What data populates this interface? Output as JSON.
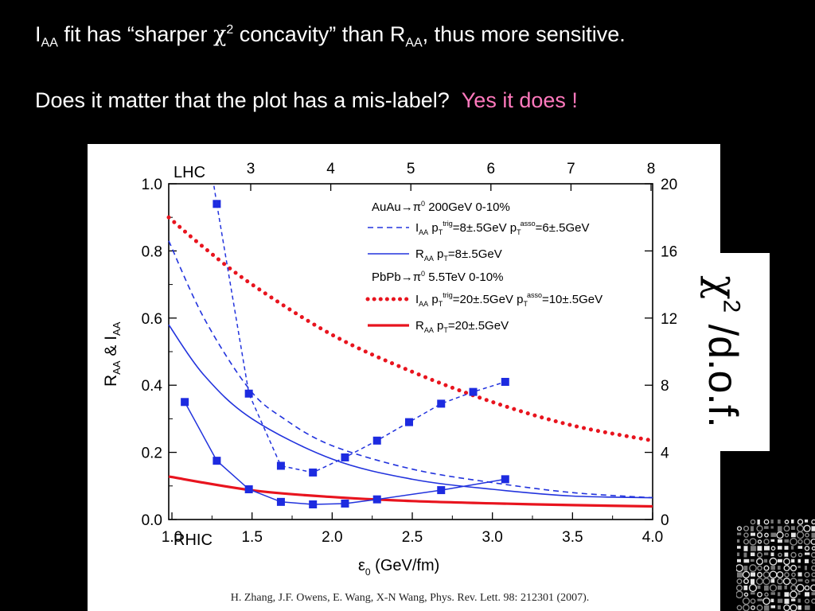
{
  "slide": {
    "line1": {
      "i": "I",
      "i_sub": "AA",
      "text_a": " fit has “sharper ",
      "chi": "χ",
      "chi_sup": "2",
      "text_b": " concavity” than R",
      "r_sub": "AA",
      "text_c": ", thus more sensitive."
    },
    "line2": {
      "question": "Does it matter that the plot has a mis-label?",
      "answer": "Yes it does !"
    },
    "right_label": {
      "chi": "χ",
      "sup": "2",
      "rest": " /d.o.f."
    },
    "colors": {
      "background": "#000000",
      "text": "#ffffff",
      "accent": "#ff79bd"
    }
  },
  "chart_data": {
    "type": "line",
    "bottom_axis": {
      "name": "RHIC",
      "label_main": "ε",
      "label_sub": "0",
      "label_rest": " (GeV/fm)",
      "ticks": [
        "1.0",
        "1.5",
        "2.0",
        "2.5",
        "3.0",
        "3.5",
        "4.0"
      ],
      "range": [
        0.98,
        4.0
      ]
    },
    "top_axis": {
      "name": "LHC",
      "ticks": [
        "3",
        "4",
        "5",
        "6",
        "7",
        "8"
      ]
    },
    "left_axis": {
      "label": "R_AA & I_AA",
      "ticks": [
        "0.0",
        "0.2",
        "0.4",
        "0.6",
        "0.8",
        "1.0"
      ],
      "range": [
        0,
        1.0
      ]
    },
    "right_axis": {
      "ticks": [
        "0",
        "4",
        "8",
        "12",
        "16",
        "20"
      ],
      "range": [
        0,
        20
      ]
    },
    "legend": {
      "placement": "top-right",
      "header1": "AuAu→π",
      "header1_sup": "0",
      "header1_rest": "  200GeV   0-10%",
      "entry1": "I_AA  p_T^trig=8±.5GeV p_T^asso=6±.5GeV",
      "entry2": "R_AA  p_T=8±.5GeV",
      "header2": "PbPb→π",
      "header2_sup": "0",
      "header2_rest": "  5.5TeV   0-10%",
      "entry3": "I_AA  p_T^trig=20±.5GeV p_T^asso=10±.5GeV",
      "entry4": "R_AA  p_T=20±.5GeV"
    },
    "series": [
      {
        "name": "AuAu I_AA",
        "style": "blue-dashed",
        "axis": "left",
        "x": [
          0.98,
          1.2,
          1.48,
          1.7,
          2.0,
          2.5,
          3.0,
          3.5,
          4.0
        ],
        "y": [
          0.83,
          0.6,
          0.39,
          0.3,
          0.22,
          0.15,
          0.11,
          0.08,
          0.065
        ]
      },
      {
        "name": "AuAu R_AA",
        "style": "blue-solid",
        "axis": "left",
        "x": [
          0.98,
          1.2,
          1.5,
          2.0,
          2.5,
          3.0,
          3.5,
          4.0
        ],
        "y": [
          0.58,
          0.43,
          0.3,
          0.18,
          0.12,
          0.09,
          0.07,
          0.065
        ]
      },
      {
        "name": "PbPb I_AA",
        "style": "red-dotted",
        "axis": "left",
        "x": [
          0.98,
          1.2,
          1.5,
          2.0,
          2.5,
          3.0,
          3.5,
          4.0
        ],
        "y": [
          0.9,
          0.81,
          0.7,
          0.55,
          0.44,
          0.35,
          0.28,
          0.235
        ]
      },
      {
        "name": "PbPb R_AA",
        "style": "red-solid",
        "axis": "left",
        "x": [
          0.98,
          1.5,
          2.0,
          2.5,
          3.0,
          3.5,
          4.0
        ],
        "y": [
          0.128,
          0.087,
          0.067,
          0.055,
          0.048,
          0.043,
          0.039
        ]
      },
      {
        "name": "chi2 I_AA fit",
        "style": "blue-squares-dashed",
        "axis": "right",
        "x": [
          1.28,
          1.48,
          1.68,
          1.88,
          2.08,
          2.28,
          2.48,
          2.68,
          2.88,
          3.08
        ],
        "y": [
          18.8,
          7.5,
          3.2,
          2.8,
          3.7,
          4.7,
          5.8,
          6.9,
          7.6,
          8.2
        ]
      },
      {
        "name": "chi2 R_AA fit",
        "style": "blue-squares-solid",
        "axis": "right",
        "x": [
          1.08,
          1.28,
          1.48,
          1.68,
          1.88,
          2.08,
          2.28,
          2.68,
          3.08
        ],
        "y": [
          7.0,
          3.5,
          1.8,
          1.05,
          0.9,
          0.95,
          1.2,
          1.75,
          2.4
        ]
      }
    ],
    "citation": "H. Zhang, J.F. Owens, E. Wang, X-N Wang, Phys. Rev. Lett. 98: 212301 (2007)."
  }
}
